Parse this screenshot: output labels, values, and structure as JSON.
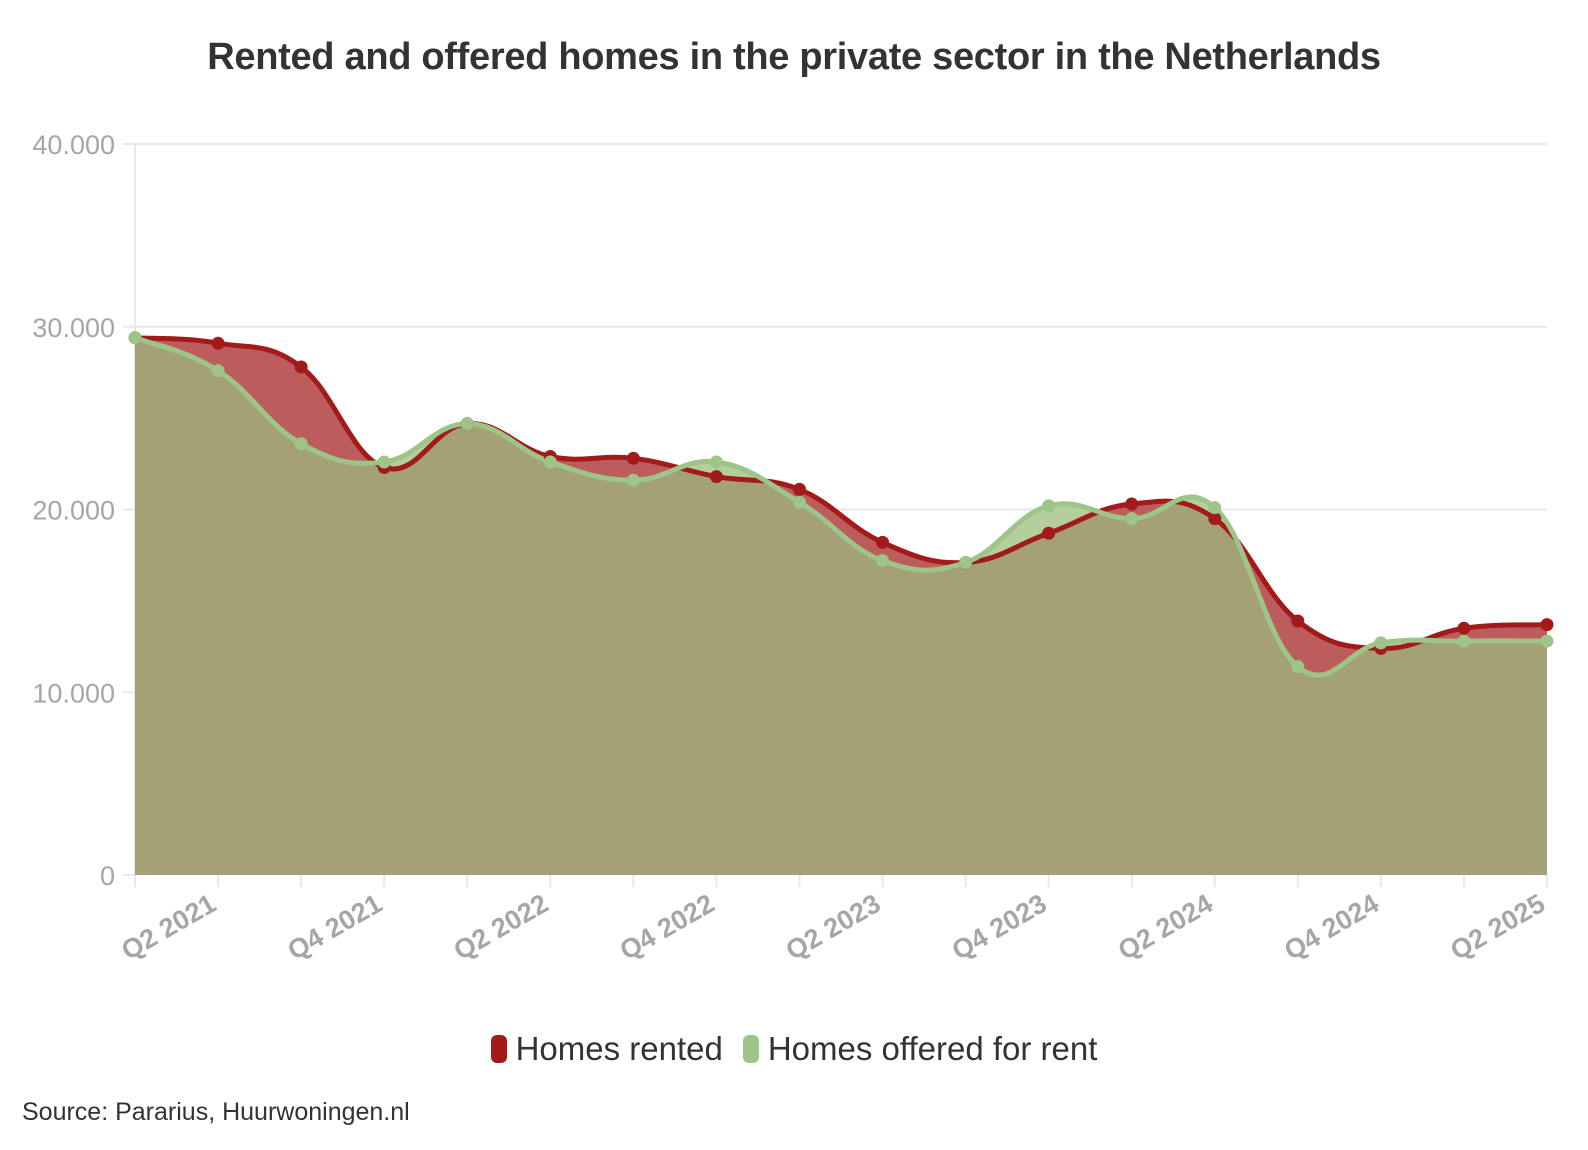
{
  "title": "Rented and offered homes in the private sector in the Netherlands",
  "source": "Source: Pararius, Huurwoningen.nl",
  "legend": [
    {
      "label": "Homes rented",
      "color": "#a31a1a"
    },
    {
      "label": "Homes offered for rent",
      "color": "#9cc587"
    }
  ],
  "colors": {
    "rented_line": "#a31a1a",
    "rented_fill": "#bd5c5c",
    "offered_line": "#9cc587",
    "offered_fill": "#b4cf9c",
    "overlap_fill": "#a5a176",
    "grid": "#e8e8e8",
    "tick_text": "#a6a6a6"
  },
  "chart_data": {
    "type": "area",
    "title": "Rented and offered homes in the private sector in the Netherlands",
    "xlabel": "",
    "ylabel": "",
    "ylim": [
      0,
      40000
    ],
    "yticks": [
      0,
      10000,
      20000,
      30000,
      40000
    ],
    "ytick_labels": [
      "0",
      "10.000",
      "20.000",
      "30.000",
      "40.000"
    ],
    "categories": [
      "Q1 2021",
      "Q2 2021",
      "Q3 2021",
      "Q4 2021",
      "Q1 2022",
      "Q2 2022",
      "Q3 2022",
      "Q4 2022",
      "Q1 2023",
      "Q2 2023",
      "Q3 2023",
      "Q4 2023",
      "Q1 2024",
      "Q2 2024",
      "Q3 2024",
      "Q4 2024",
      "Q1 2025",
      "Q2 2025"
    ],
    "xtick_labels_shown": [
      "Q2 2021",
      "Q4 2021",
      "Q2 2022",
      "Q4 2022",
      "Q2 2023",
      "Q4 2023",
      "Q2 2024",
      "Q4 2024",
      "Q2 2025"
    ],
    "series": [
      {
        "name": "Homes rented",
        "values": [
          29400,
          29100,
          27800,
          22300,
          24700,
          22900,
          22800,
          21800,
          21100,
          18200,
          17100,
          18700,
          20300,
          19500,
          13900,
          12400,
          13500,
          13700
        ]
      },
      {
        "name": "Homes offered for rent",
        "values": [
          29400,
          27600,
          23600,
          22600,
          24700,
          22600,
          21600,
          22600,
          20400,
          17200,
          17100,
          20200,
          19500,
          20100,
          11400,
          12700,
          12800,
          12800
        ]
      }
    ],
    "grid": true,
    "legend_position": "bottom"
  }
}
